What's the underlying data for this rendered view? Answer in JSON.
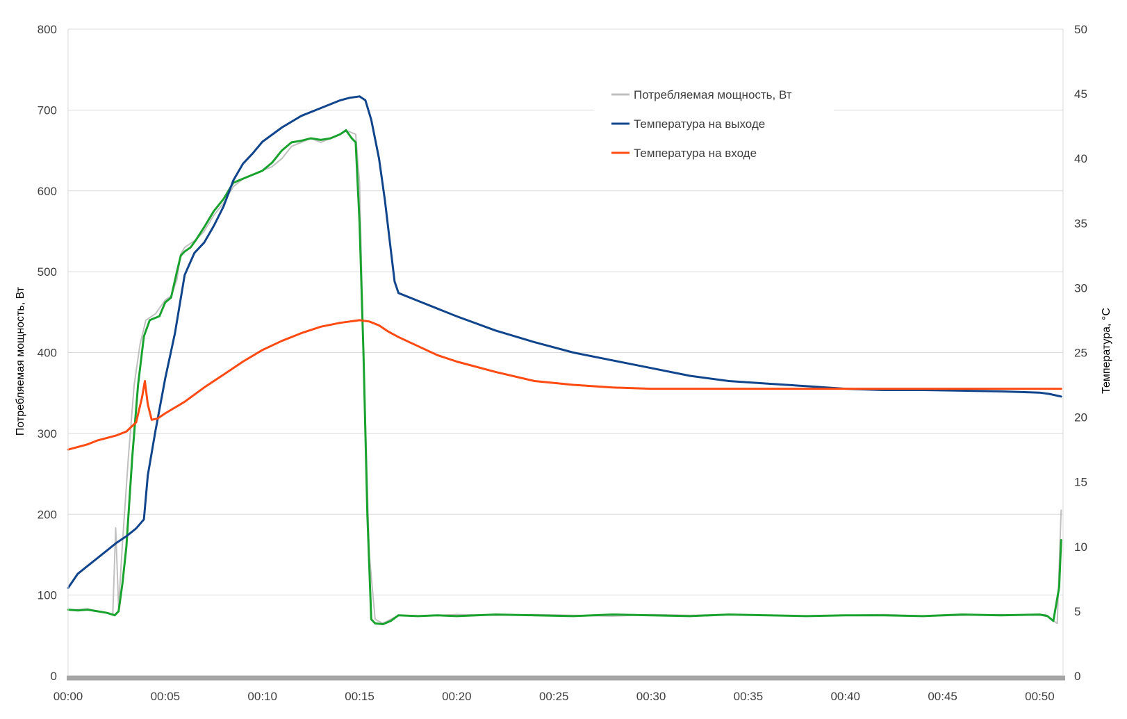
{
  "chart_data": {
    "type": "line",
    "title": "",
    "xlabel": "",
    "ylabel_left": "Потребляемая мощность, Вт",
    "ylabel_right": "Температура, °C",
    "x_unit": "minutes",
    "xlim": [
      0,
      51.2
    ],
    "ylim_left": [
      0,
      800
    ],
    "ylim_right": [
      0,
      50
    ],
    "x_ticks": [
      "00:00",
      "00:05",
      "00:10",
      "00:15",
      "00:20",
      "00:25",
      "00:30",
      "00:35",
      "00:40",
      "00:45",
      "00:50"
    ],
    "y_ticks_left": [
      "0",
      "100",
      "200",
      "300",
      "400",
      "500",
      "600",
      "700",
      "800"
    ],
    "y_ticks_right": [
      "0",
      "5",
      "10",
      "15",
      "20",
      "25",
      "30",
      "35",
      "40",
      "45",
      "50"
    ],
    "grid": true,
    "legend_position": "top-center",
    "series": [
      {
        "name": "Потребляемая мощность, Вт",
        "axis": "left",
        "color": "#c0c0c0",
        "x": [
          0,
          0.5,
          1,
          1.5,
          2,
          2.3,
          2.45,
          2.6,
          2.8,
          3.1,
          3.4,
          3.7,
          4,
          4.5,
          5,
          5.3,
          5.6,
          5.8,
          6,
          6.3,
          6.6,
          7,
          7.5,
          8,
          8.5,
          9,
          9.5,
          10,
          10.5,
          11,
          11.5,
          12,
          12.5,
          13,
          13.5,
          14,
          14.3,
          14.6,
          14.8,
          15,
          15.2,
          15.5,
          15.8,
          16.2,
          17,
          18,
          19,
          20,
          22,
          24,
          26,
          28,
          30,
          32,
          34,
          36,
          38,
          40,
          42,
          44,
          46,
          48,
          50,
          50.3,
          50.6,
          50.9,
          51.1
        ],
        "y": [
          82,
          82,
          83,
          80,
          78,
          76,
          183,
          85,
          165,
          270,
          360,
          410,
          440,
          448,
          465,
          470,
          490,
          522,
          530,
          535,
          540,
          550,
          570,
          585,
          605,
          615,
          620,
          625,
          630,
          640,
          655,
          660,
          665,
          660,
          665,
          670,
          675,
          672,
          670,
          610,
          400,
          150,
          70,
          65,
          75,
          74,
          75,
          76,
          75,
          76,
          75,
          74,
          76,
          75,
          76,
          75,
          74,
          75,
          76,
          74,
          75,
          76,
          75,
          76,
          70,
          65,
          205
        ]
      },
      {
        "name": "",
        "axis": "left",
        "color": "#1aa22e",
        "x": [
          0,
          0.5,
          1,
          1.5,
          2,
          2.4,
          2.6,
          2.8,
          3.0,
          3.3,
          3.6,
          3.9,
          4.2,
          4.7,
          5.0,
          5.3,
          5.6,
          5.8,
          6.0,
          6.3,
          6.6,
          7.0,
          7.5,
          8,
          8.5,
          9,
          9.5,
          10,
          10.5,
          11,
          11.5,
          12,
          12.5,
          13,
          13.5,
          14,
          14.3,
          14.6,
          14.8,
          15,
          15.2,
          15.4,
          15.6,
          15.8,
          16.2,
          16.6,
          17,
          18,
          19,
          20,
          22,
          24,
          26,
          28,
          30,
          32,
          34,
          36,
          38,
          40,
          42,
          44,
          46,
          48,
          50,
          50.4,
          50.7,
          51.0,
          51.1
        ],
        "y": [
          82,
          81,
          82,
          80,
          78,
          75,
          80,
          115,
          160,
          270,
          360,
          420,
          440,
          445,
          462,
          468,
          500,
          520,
          525,
          530,
          540,
          555,
          575,
          590,
          610,
          615,
          620,
          625,
          635,
          650,
          660,
          662,
          665,
          663,
          665,
          670,
          675,
          665,
          660,
          560,
          400,
          200,
          70,
          65,
          64,
          68,
          75,
          74,
          75,
          74,
          76,
          75,
          74,
          76,
          75,
          74,
          76,
          75,
          74,
          75,
          75,
          74,
          76,
          75,
          76,
          74,
          68,
          110,
          168
        ]
      },
      {
        "name": "Температура на выходе",
        "axis": "right",
        "color": "#10458c",
        "x": [
          0,
          0.5,
          1,
          1.5,
          2,
          2.5,
          3.0,
          3.5,
          3.9,
          4.1,
          4.5,
          5,
          5.5,
          6,
          6.5,
          7,
          7.5,
          8,
          8.5,
          9,
          9.5,
          10,
          11,
          12,
          13,
          14,
          14.5,
          15,
          15.3,
          15.6,
          16,
          16.3,
          16.6,
          16.8,
          17,
          18,
          19,
          20,
          22,
          24,
          26,
          28,
          30,
          32,
          34,
          36,
          38,
          40,
          42,
          44,
          46,
          48,
          50,
          50.5,
          51.1
        ],
        "y": [
          6.8,
          7.9,
          8.5,
          9.1,
          9.7,
          10.3,
          10.8,
          11.4,
          12.1,
          15.5,
          19,
          23,
          26.5,
          31,
          32.7,
          33.5,
          34.8,
          36.3,
          38.3,
          39.6,
          40.4,
          41.3,
          42.4,
          43.3,
          43.9,
          44.5,
          44.7,
          44.8,
          44.5,
          43,
          40,
          36.8,
          33,
          30.5,
          29.6,
          29.0,
          28.4,
          27.8,
          26.7,
          25.8,
          25.0,
          24.4,
          23.8,
          23.2,
          22.8,
          22.6,
          22.4,
          22.2,
          22.1,
          22.1,
          22.05,
          22.0,
          21.9,
          21.8,
          21.6
        ]
      },
      {
        "name": "Температура на входе",
        "axis": "right",
        "color": "#ff4a12",
        "x": [
          0,
          0.5,
          1,
          1.5,
          2,
          2.5,
          3.0,
          3.5,
          3.8,
          3.95,
          4.1,
          4.3,
          4.6,
          5,
          6,
          7,
          8,
          9,
          10,
          11,
          12,
          13,
          14,
          14.5,
          15,
          15.5,
          16,
          16.5,
          17,
          18,
          19,
          20,
          22,
          24,
          26,
          28,
          30,
          32,
          34,
          36,
          38,
          40,
          42,
          44,
          46,
          48,
          50,
          51.1
        ],
        "y": [
          17.5,
          17.7,
          17.9,
          18.2,
          18.4,
          18.6,
          18.9,
          19.6,
          21.5,
          22.8,
          21.0,
          19.8,
          19.9,
          20.3,
          21.2,
          22.3,
          23.3,
          24.3,
          25.2,
          25.9,
          26.5,
          27.0,
          27.3,
          27.4,
          27.5,
          27.4,
          27.1,
          26.6,
          26.2,
          25.5,
          24.8,
          24.3,
          23.5,
          22.8,
          22.5,
          22.3,
          22.2,
          22.2,
          22.2,
          22.2,
          22.2,
          22.2,
          22.2,
          22.2,
          22.2,
          22.2,
          22.2,
          22.2
        ]
      }
    ]
  }
}
